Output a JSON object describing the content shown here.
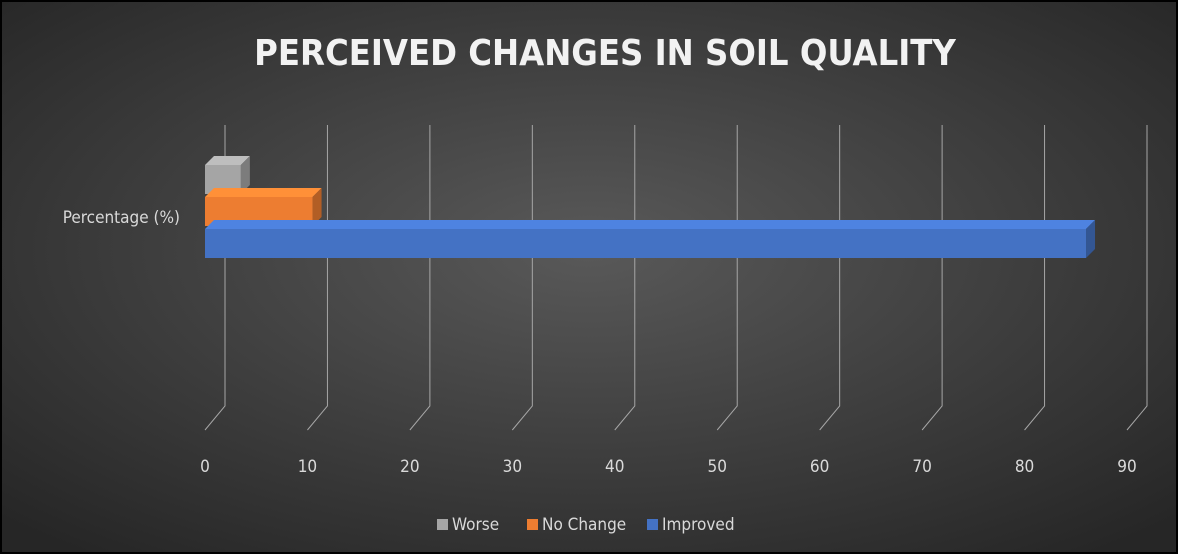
{
  "chart_data": {
    "type": "bar3d_horizontal",
    "title": "PERCEIVED CHANGES IN SOIL QUALITY",
    "categories": [
      "Percentage (%)"
    ],
    "series": [
      {
        "name": "Worse",
        "color": "#a5a5a5",
        "values": [
          3.5
        ]
      },
      {
        "name": "No Change",
        "color": "#ed7d31",
        "values": [
          10.5
        ]
      },
      {
        "name": "Improved",
        "color": "#4472c4",
        "values": [
          86
        ]
      }
    ],
    "xlim": [
      0,
      90
    ],
    "xticks": [
      0,
      10,
      20,
      30,
      40,
      50,
      60,
      70,
      80,
      90
    ],
    "grid": true,
    "legend": "bottom"
  }
}
